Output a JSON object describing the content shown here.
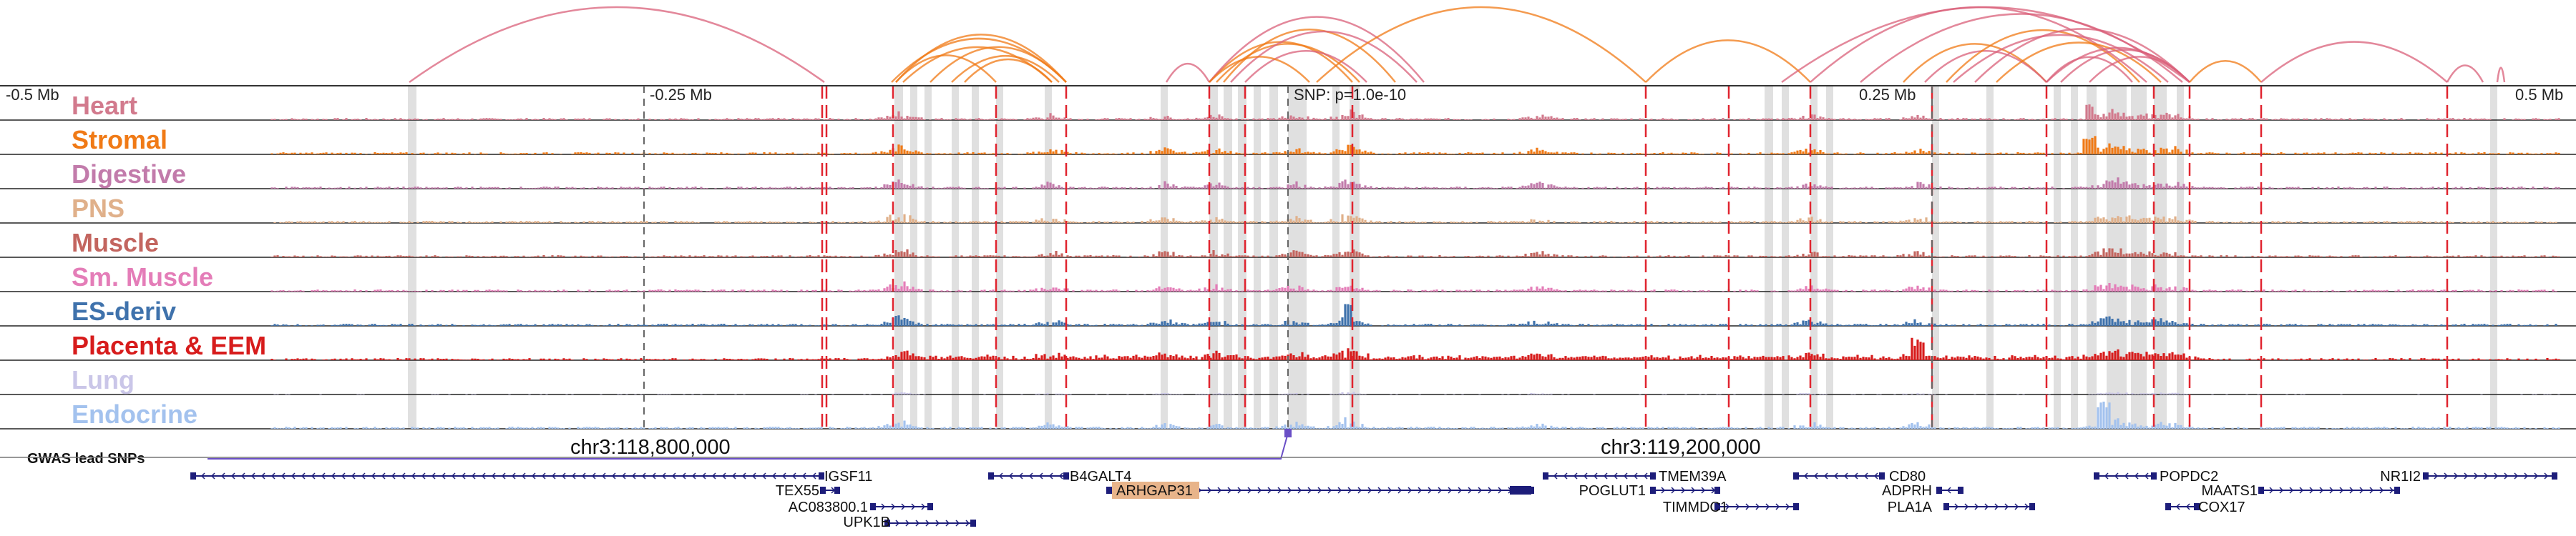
{
  "ruler": {
    "ticks": [
      "-0.5 Mb",
      "-0.25 Mb",
      "0.25 Mb",
      "0.5 Mb"
    ],
    "snp_label": "SNP: p=1.0e-10"
  },
  "tracks": [
    {
      "label": "Heart",
      "color": "#d27a8d"
    },
    {
      "label": "Stromal",
      "color": "#f07a16"
    },
    {
      "label": "Digestive",
      "color": "#c27bab"
    },
    {
      "label": "PNS",
      "color": "#e0b08a"
    },
    {
      "label": "Muscle",
      "color": "#c3655f"
    },
    {
      "label": "Sm. Muscle",
      "color": "#e47db8"
    },
    {
      "label": "ES-deriv",
      "color": "#3f72ac"
    },
    {
      "label": "Placenta & EEM",
      "color": "#d71c1c"
    },
    {
      "label": "Lung",
      "color": "#cac6e8"
    },
    {
      "label": "Endocrine",
      "color": "#a3c2ee"
    }
  ],
  "gwas": {
    "label": "GWAS lead SNPs",
    "color": "#6a4fc6"
  },
  "coordinates": [
    "chr3:118,800,000",
    "chr3:119,200,000"
  ],
  "genes": [
    "IGSF11",
    "TEX55",
    "AC083800.1",
    "UPK1B",
    "B4GALT4",
    "ARHGAP31",
    "TMEM39A",
    "POGLUT1",
    "TIMMDC1",
    "CD80",
    "ADPRH",
    "PLA1A",
    "POPDC2",
    "MAATS1",
    "COX17",
    "NR1I2"
  ],
  "colors": {
    "link_orange": "#f07a16",
    "link_pink": "#d9607a",
    "highlight_line": "#e0242f",
    "highlight_band": "#d3d3d3",
    "gene_line": "#1d1d7a",
    "arhgap_box": "#e8b48a"
  },
  "icons": {
    "strand_arrow": "chevron-left-right-icon"
  }
}
